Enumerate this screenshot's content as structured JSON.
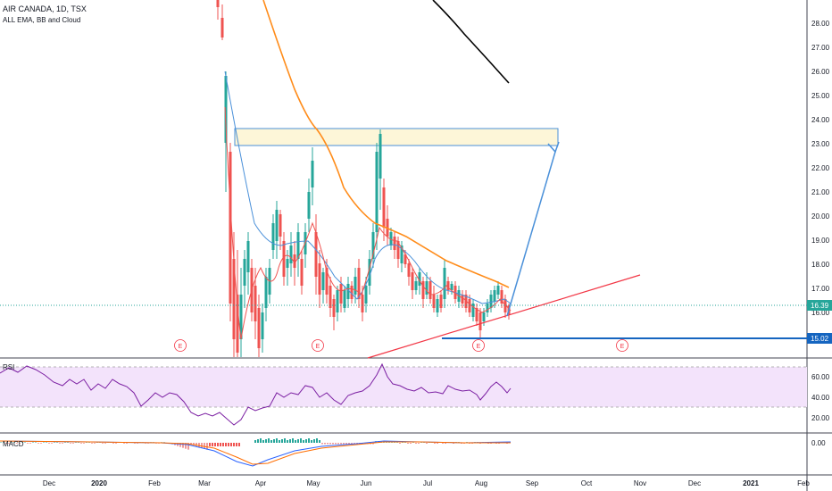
{
  "header": {
    "title": "AIR CANADA, 1D, TSX",
    "indicator": "ALL EMA, BB and Cloud"
  },
  "colors": {
    "up": "#26a69a",
    "down": "#ef5350",
    "ema_orange": "#ff8c1a",
    "ema_blue": "#4a90d9",
    "ema_red": "#ef5350",
    "ema_black": "#000000",
    "rsi_line": "#7b1fa2",
    "rsi_band": "#f3e3fb",
    "hline_blue": "#1565c0",
    "current_tag": "#26a69a",
    "trend_red": "#f23645",
    "arrow_blue": "#4a90d9",
    "box_fill": "#fdf6d8"
  },
  "price_axis": [
    "28.00",
    "27.00",
    "26.00",
    "25.00",
    "24.00",
    "23.00",
    "22.00",
    "21.00",
    "20.00",
    "19.00",
    "18.00",
    "17.00",
    "16.00"
  ],
  "price_tags": {
    "current": "16.39",
    "support": "15.02"
  },
  "rsi_pane": {
    "label": "RSI",
    "axis": [
      "60.00",
      "40.00",
      "20.00"
    ]
  },
  "macd_pane": {
    "label": "MACD",
    "axis": [
      "0.00"
    ]
  },
  "x_axis": [
    {
      "label": "Dec",
      "year": false
    },
    {
      "label": "2020",
      "year": true
    },
    {
      "label": "Feb",
      "year": false
    },
    {
      "label": "Mar",
      "year": false
    },
    {
      "label": "Apr",
      "year": false
    },
    {
      "label": "May",
      "year": false
    },
    {
      "label": "Jun",
      "year": false
    },
    {
      "label": "Jul",
      "year": false
    },
    {
      "label": "Aug",
      "year": false
    },
    {
      "label": "Sep",
      "year": false
    },
    {
      "label": "Oct",
      "year": false
    },
    {
      "label": "Nov",
      "year": false
    },
    {
      "label": "Dec",
      "year": false
    },
    {
      "label": "2021",
      "year": true
    },
    {
      "label": "Feb",
      "year": false
    }
  ],
  "earnings_marker": "E"
}
